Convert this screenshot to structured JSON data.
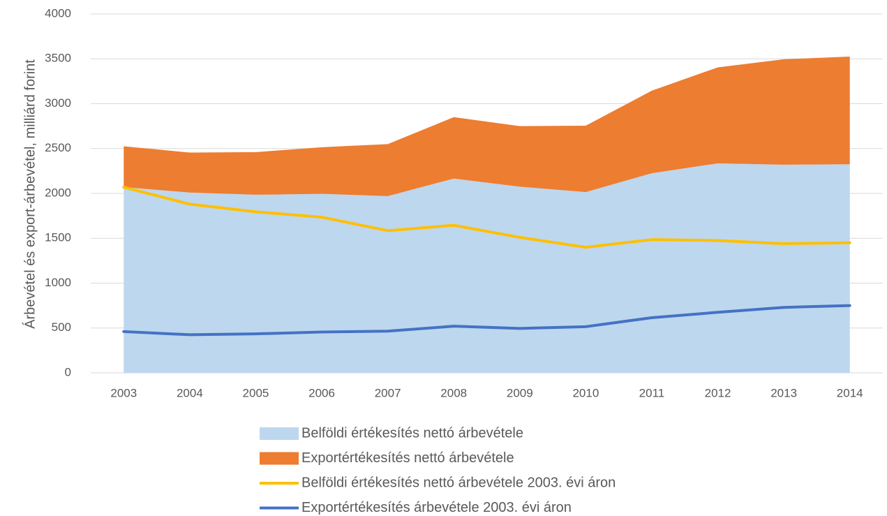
{
  "chart_data": {
    "type": "area",
    "stacked": true,
    "y_label": "Árbevétel és export-árbevétel, milliárd forint",
    "categories": [
      "2003",
      "2004",
      "2005",
      "2006",
      "2007",
      "2008",
      "2009",
      "2010",
      "2011",
      "2012",
      "2013",
      "2014"
    ],
    "series": [
      {
        "name": "Belföldi értékesítés nettó árbevétele",
        "type": "area",
        "color": "#bdd7ee",
        "values": [
          2070,
          2010,
          1985,
          1995,
          1970,
          2165,
          2075,
          2015,
          2225,
          2335,
          2320,
          2325
        ]
      },
      {
        "name": "Exportértékesítés nettó árbevétele",
        "type": "area",
        "color": "#ed7d31",
        "values": [
          455,
          445,
          475,
          520,
          580,
          685,
          675,
          740,
          920,
          1070,
          1175,
          1200
        ]
      },
      {
        "name": "Belföldi értékesítés nettó árbevétele 2003. évi áron",
        "type": "line",
        "color": "#ffc000",
        "values": [
          2070,
          1880,
          1795,
          1735,
          1585,
          1645,
          1510,
          1400,
          1485,
          1475,
          1440,
          1450
        ]
      },
      {
        "name": "Exportértékesítés árbevétele 2003. évi áron",
        "type": "line",
        "color": "#4472c4",
        "values": [
          460,
          425,
          435,
          455,
          465,
          520,
          495,
          515,
          615,
          675,
          730,
          750
        ]
      }
    ],
    "ylim": [
      0,
      4000
    ],
    "yticks": [
      0,
      500,
      1000,
      1500,
      2000,
      2500,
      3000,
      3500,
      4000
    ],
    "grid": true,
    "legend": "bottom"
  }
}
